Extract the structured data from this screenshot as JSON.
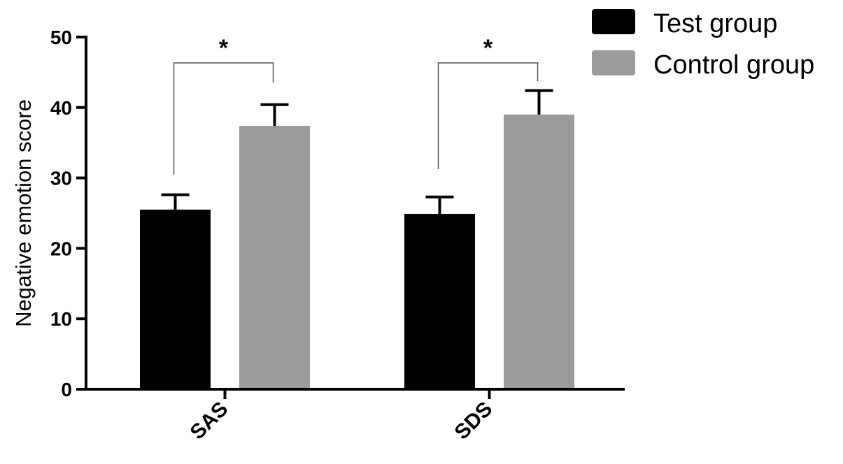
{
  "chart_data": {
    "type": "bar",
    "categories": [
      "SAS",
      "SDS"
    ],
    "series": [
      {
        "name": "Test group",
        "values": [
          25.5,
          24.9
        ],
        "errors": [
          2.1,
          2.4
        ],
        "color": "#000000"
      },
      {
        "name": "Control group",
        "values": [
          37.4,
          39.0
        ],
        "errors": [
          3.0,
          3.4
        ],
        "color": "#9b9b9e"
      }
    ],
    "title": "",
    "xlabel": "",
    "ylabel": "Negative emotion score",
    "ylim": [
      0,
      50
    ],
    "yticks": [
      0,
      10,
      20,
      30,
      40,
      50
    ],
    "grid": false,
    "legend": "top-right",
    "annotations": [
      {
        "label": "*",
        "category": "SAS"
      },
      {
        "label": "*",
        "category": "SDS"
      }
    ]
  }
}
